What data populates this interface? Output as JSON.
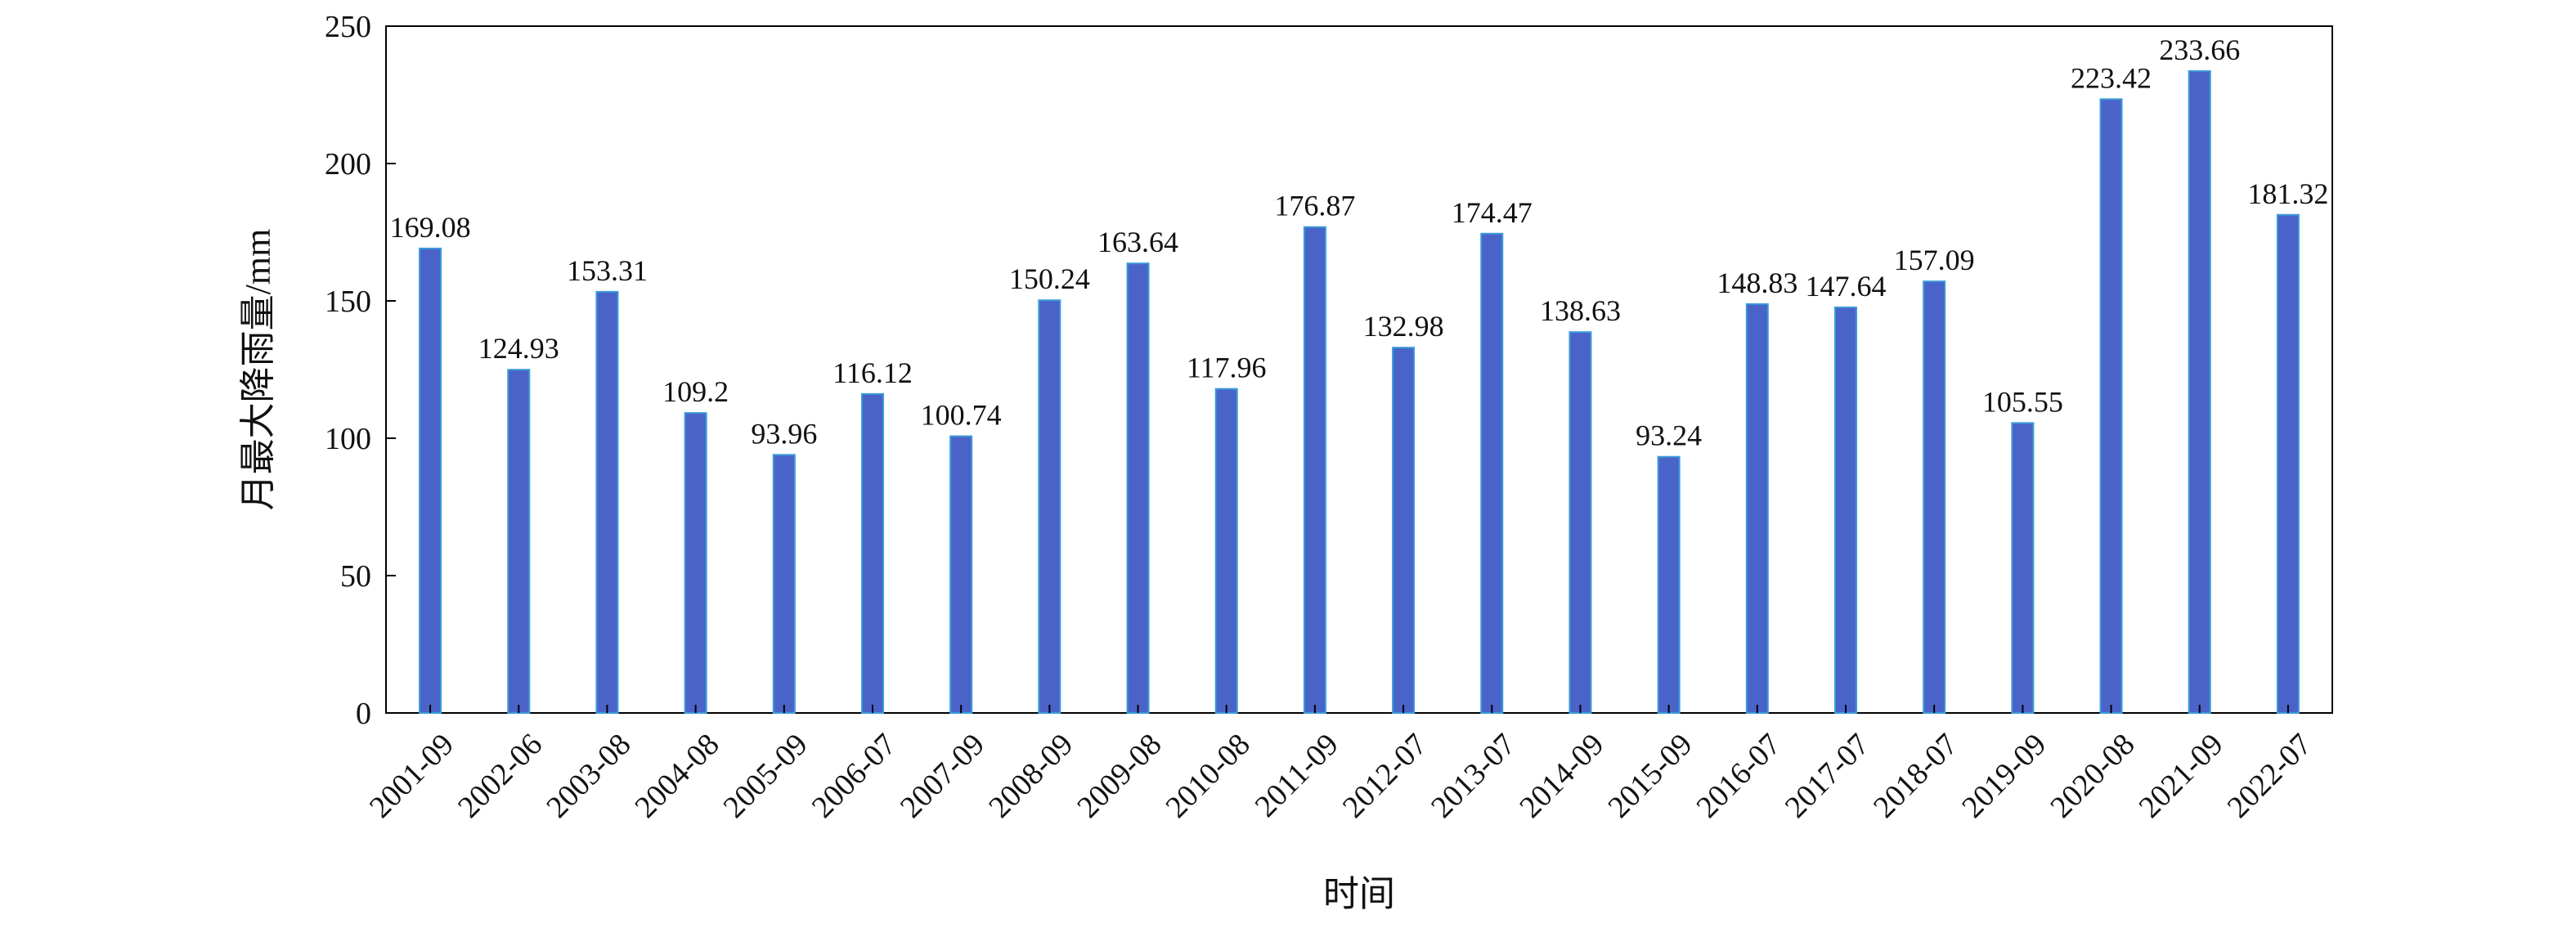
{
  "chart_data": {
    "type": "bar",
    "title": "",
    "xlabel": "时间",
    "ylabel": "月最大降雨量/mm",
    "ylim": [
      0,
      250
    ],
    "yticks": [
      0,
      50,
      100,
      150,
      200,
      250
    ],
    "grid": false,
    "legend": "none",
    "categories": [
      "2001-09",
      "2002-06",
      "2003-08",
      "2004-08",
      "2005-09",
      "2006-07",
      "2007-09",
      "2008-09",
      "2009-08",
      "2010-08",
      "2011-09",
      "2012-07",
      "2013-07",
      "2014-09",
      "2015-09",
      "2016-07",
      "2017-07",
      "2018-07",
      "2019-09",
      "2020-08",
      "2021-09",
      "2022-07"
    ],
    "values": [
      169.08,
      124.93,
      153.31,
      109.2,
      93.96,
      116.12,
      100.74,
      150.24,
      163.64,
      117.96,
      176.87,
      132.98,
      174.47,
      138.63,
      93.24,
      148.83,
      147.64,
      157.09,
      105.55,
      223.42,
      233.66,
      181.32
    ],
    "data_labels": [
      "169.08",
      "124.93",
      "153.31",
      "109.2",
      "93.96",
      "116.12",
      "100.74",
      "150.24",
      "163.64",
      "117.96",
      "176.87",
      "132.98",
      "174.47",
      "138.63",
      "93.24",
      "148.83",
      "147.64",
      "157.09",
      "105.55",
      "223.42",
      "233.66",
      "181.32"
    ],
    "bar_color": "#4a63c8",
    "bar_edge_color": "#3a9ad9",
    "axis_color": "#000000"
  }
}
